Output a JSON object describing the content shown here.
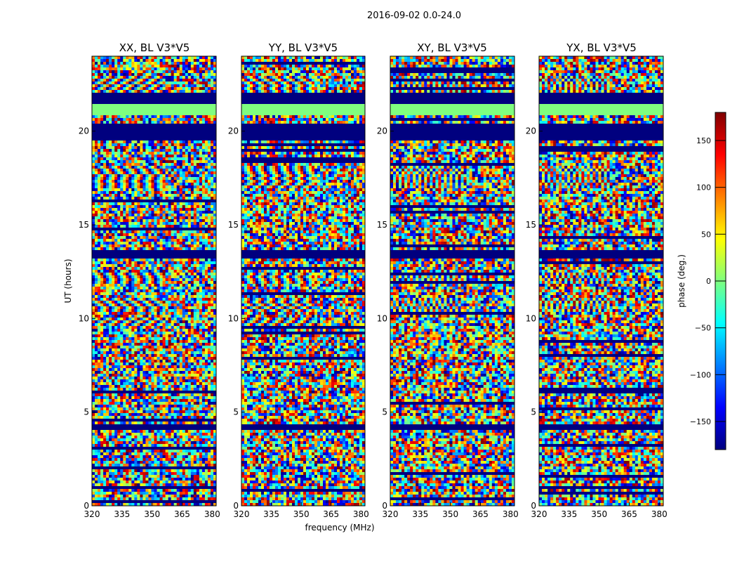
{
  "chart_data": {
    "type": "heatmap",
    "suptitle": "2016-09-02 0.0-24.0",
    "xlabel": "frequency (MHz)",
    "ylabel": "UT (hours)",
    "xlim": [
      320,
      382
    ],
    "ylim": [
      0,
      24
    ],
    "xticks": [
      "320",
      "335",
      "350",
      "365",
      "380"
    ],
    "yticks": [
      "0",
      "5",
      "10",
      "15",
      "20"
    ],
    "panels": [
      {
        "title": "XX, BL V3*V5",
        "pol": "XX"
      },
      {
        "title": "YY, BL V3*V5",
        "pol": "YY"
      },
      {
        "title": "XY, BL V3*V5",
        "pol": "XY"
      },
      {
        "title": "YX, BL V3*V5",
        "pol": "YX"
      }
    ],
    "colorbar": {
      "label": "phase (deg.)",
      "range": [
        -180,
        180
      ],
      "ticks": [
        "150",
        "100",
        "50",
        "0",
        "−50",
        "−100",
        "−150"
      ],
      "colormap": "jet"
    }
  },
  "colors": {
    "masked": "#00007f",
    "flag_band": "#7fff7f"
  }
}
